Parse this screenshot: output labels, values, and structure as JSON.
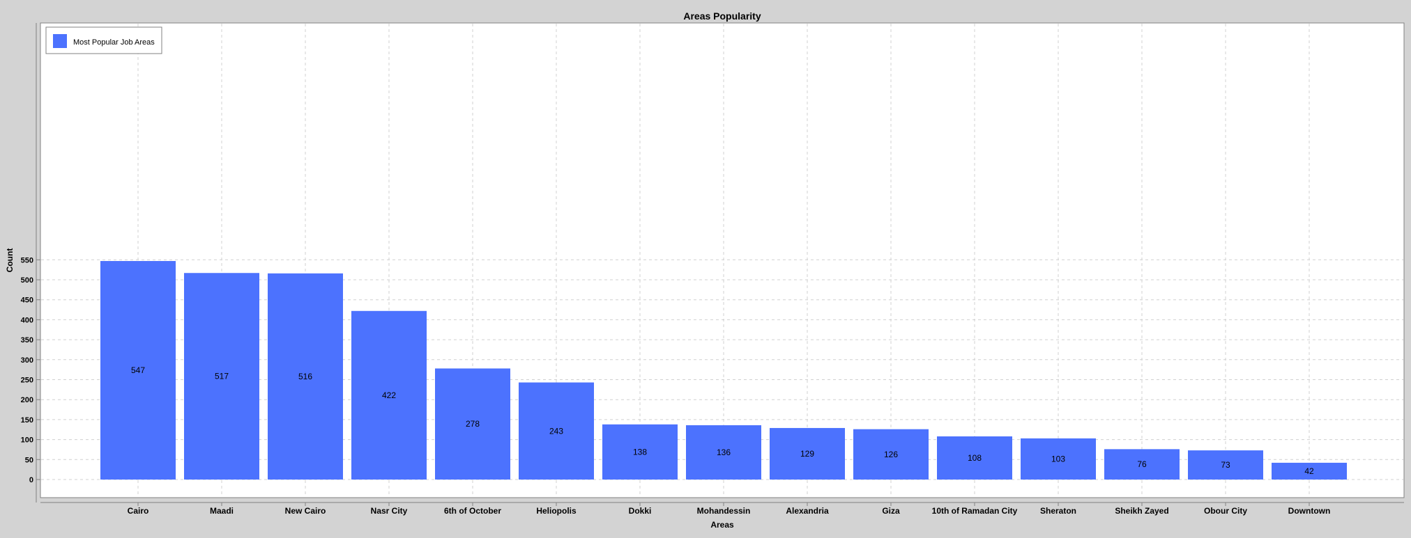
{
  "chart_data": {
    "type": "bar",
    "title": "Areas Popularity",
    "xlabel": "Areas",
    "ylabel": "Count",
    "ylim": [
      0,
      560
    ],
    "yticks": [
      0,
      50,
      100,
      150,
      200,
      250,
      300,
      350,
      400,
      450,
      500,
      550
    ],
    "grid": true,
    "legend_position": "top-left",
    "categories": [
      "Cairo",
      "Maadi",
      "New Cairo",
      "Nasr City",
      "6th of October",
      "Heliopolis",
      "Dokki",
      "Mohandessin",
      "Alexandria",
      "Giza",
      "10th of Ramadan City",
      "Sheraton",
      "Sheikh Zayed",
      "Obour City",
      "Downtown"
    ],
    "series": [
      {
        "name": "Most Popular Job Areas",
        "color": "#4c72fe",
        "values": [
          547,
          517,
          516,
          422,
          278,
          243,
          138,
          136,
          129,
          126,
          108,
          103,
          76,
          73,
          42
        ]
      }
    ]
  }
}
